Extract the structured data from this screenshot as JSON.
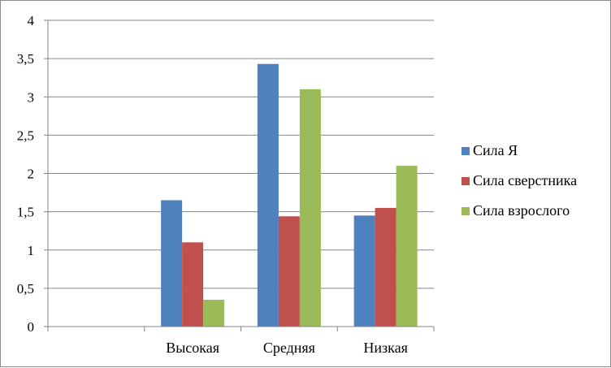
{
  "chart_data": {
    "type": "bar",
    "categories": [
      "",
      "Высокая",
      "Средняя",
      "Низкая"
    ],
    "series": [
      {
        "name": "Сила Я",
        "color": "#4f81bd",
        "values": [
          null,
          1.65,
          3.43,
          1.45
        ]
      },
      {
        "name": "Сила сверстника",
        "color": "#c0504d",
        "values": [
          null,
          1.1,
          1.44,
          1.55
        ]
      },
      {
        "name": "Сила взрослого",
        "color": "#9bbb59",
        "values": [
          null,
          0.35,
          3.1,
          2.1
        ]
      }
    ],
    "yticks": [
      "0",
      "0,5",
      "1",
      "1,5",
      "2",
      "2,5",
      "3",
      "3,5",
      "4"
    ],
    "ylim": [
      0,
      4
    ],
    "grid": true,
    "legend": "right"
  }
}
